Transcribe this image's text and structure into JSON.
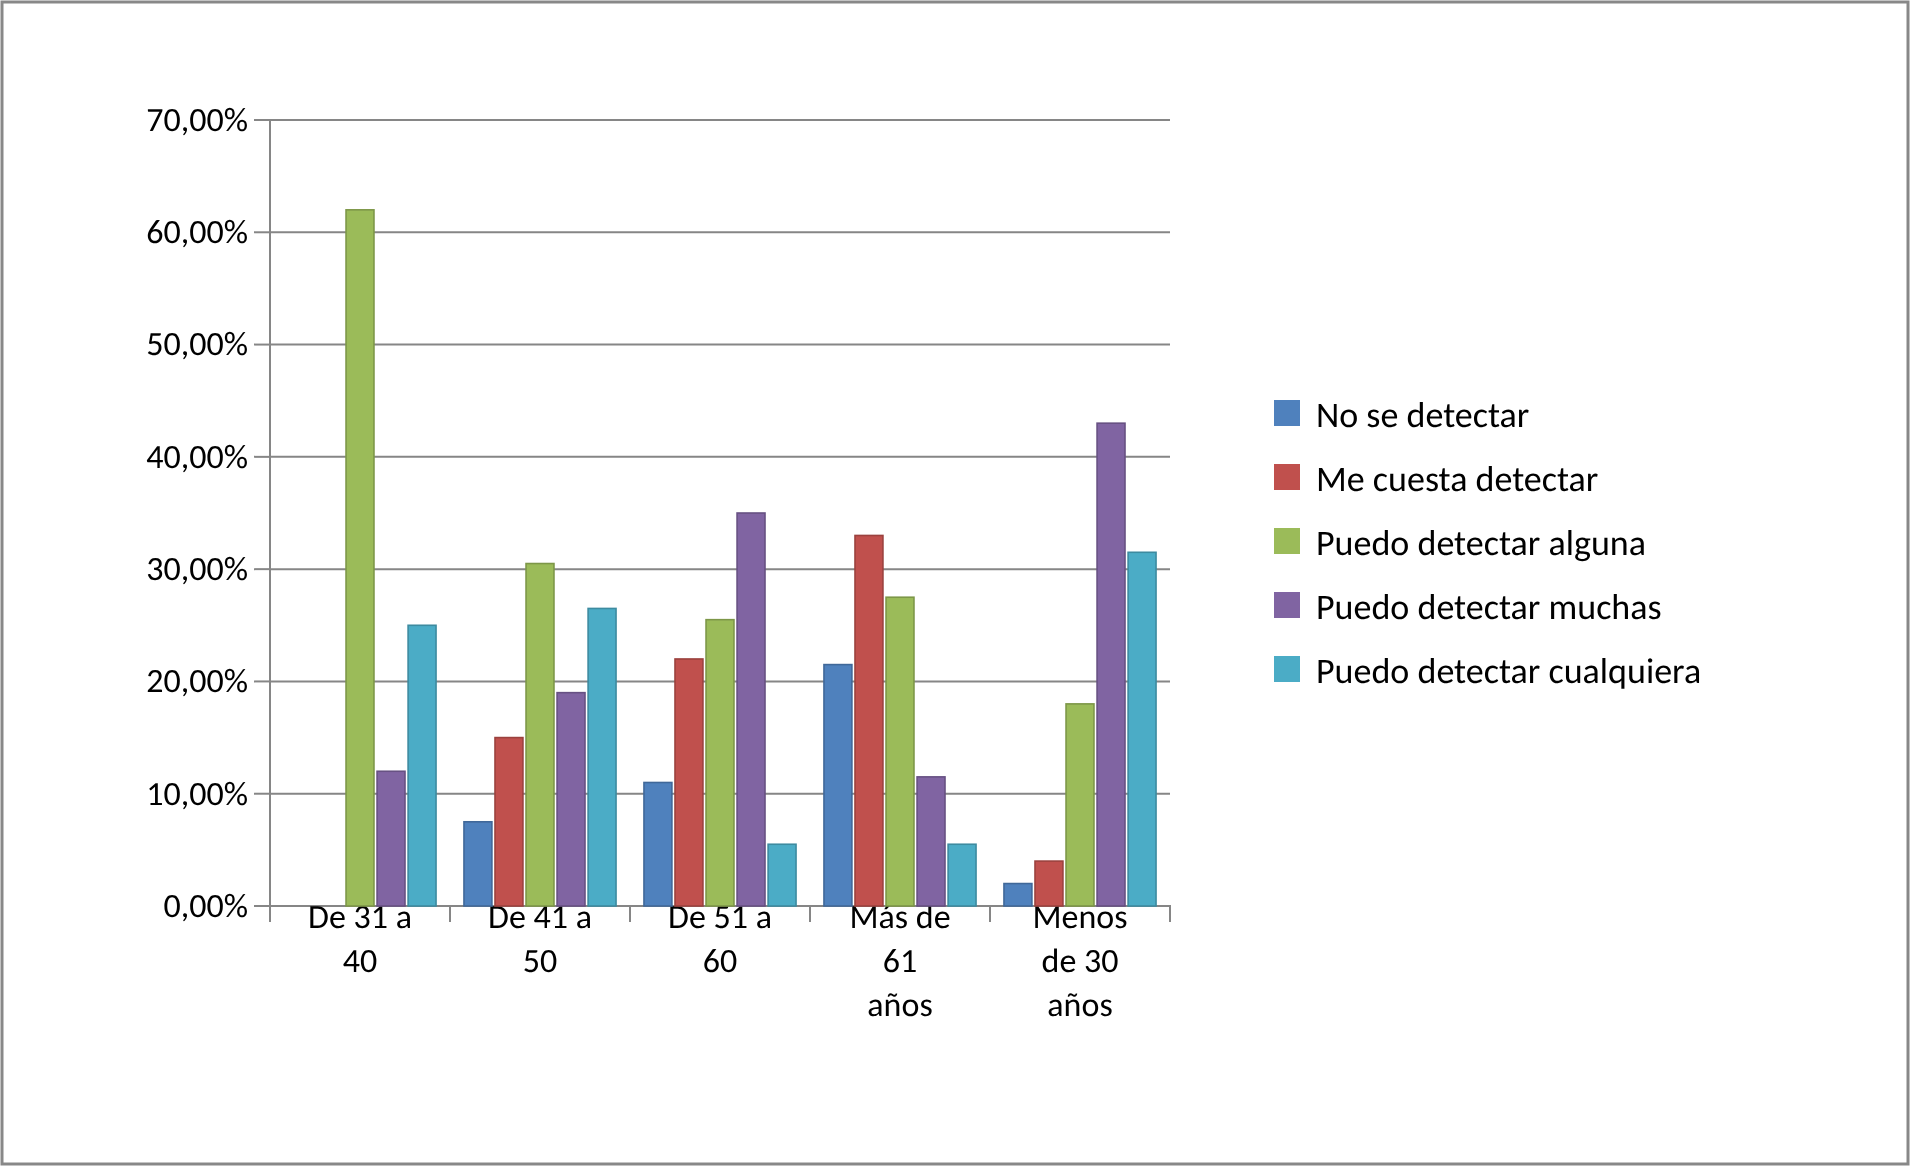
{
  "chart_data": {
    "type": "bar",
    "categories": [
      "De 31 a 40",
      "De 41 a 50",
      "De 51 a 60",
      "Más de 61 años",
      "Menos de 30 años"
    ],
    "series": [
      {
        "name": "No se detectar",
        "color": "#4f81bd",
        "values": [
          0,
          7.5,
          11,
          21.5,
          2
        ]
      },
      {
        "name": "Me cuesta detectar",
        "color": "#c0504d",
        "values": [
          0,
          15,
          22,
          33,
          4
        ]
      },
      {
        "name": "Puedo detectar alguna",
        "color": "#9bbb59",
        "values": [
          62,
          30.5,
          25.5,
          27.5,
          18
        ]
      },
      {
        "name": "Puedo detectar muchas",
        "color": "#8064a2",
        "values": [
          12,
          19,
          35,
          11.5,
          43
        ]
      },
      {
        "name": "Puedo detectar cualquiera",
        "color": "#4bacc6",
        "values": [
          25,
          26.5,
          5.5,
          5.5,
          31.5
        ]
      }
    ],
    "ylim": [
      0,
      70
    ],
    "yticks": [
      {
        "value": 0,
        "label": "0,00%"
      },
      {
        "value": 10,
        "label": "10,00%"
      },
      {
        "value": 20,
        "label": "20,00%"
      },
      {
        "value": 30,
        "label": "30,00%"
      },
      {
        "value": 40,
        "label": "40,00%"
      },
      {
        "value": 50,
        "label": "50,00%"
      },
      {
        "value": 60,
        "label": "60,00%"
      },
      {
        "value": 70,
        "label": "70,00%"
      }
    ],
    "grid": "y",
    "legend": "right"
  }
}
